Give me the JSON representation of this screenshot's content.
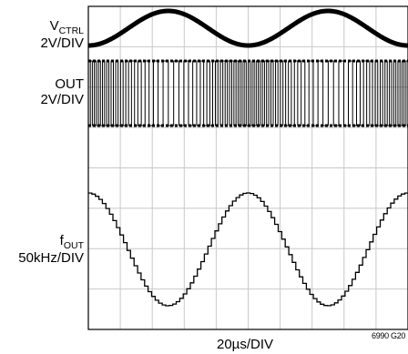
{
  "chart_data": {
    "type": "line",
    "title": "",
    "xlabel": "20µs/DIV",
    "figure_code": "6990 G20",
    "divisions": {
      "x": 10,
      "y": 8
    },
    "grid": true,
    "traces": [
      {
        "name_main": "V",
        "name_sub": "CTRL",
        "scale": "2V/DIV",
        "shape": "sine",
        "period_us": 100,
        "cycles_shown": 2,
        "phase": "minimum at left edge"
      },
      {
        "name_main": "OUT",
        "name_sub": "",
        "scale": "2V/DIV",
        "shape": "square wave, frequency modulated"
      },
      {
        "name_main": "f",
        "name_sub": "OUT",
        "scale": "50kHz/DIV",
        "shape": "stepped sine",
        "period_us": 100,
        "amplitude_div": 2.5,
        "phase": "maximum at left edge"
      }
    ]
  }
}
